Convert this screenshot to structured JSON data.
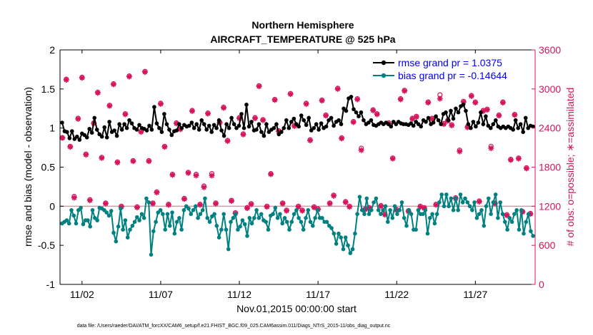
{
  "chart_data": {
    "type": "line",
    "title": [
      "Northern Hemisphere",
      "AIRCRAFT_TEMPERATURE @ 525 hPa"
    ],
    "xlabel": "Nov.01,2015 00:00:00 start",
    "ylabel_left": "rmse and bias (model - observation)",
    "ylabel_right": "# of obs: o=possible; ∗=assimilated",
    "footer": "data file: /Users/raeder/DAI/ATM_forcXX/CAM6_setup/f.e21.FHIST_BGC.f09_025.CAM6assim.011/Diags_NTrS_2015-11/obs_diag_output.nc",
    "xlim": [
      0.6,
      30.8
    ],
    "ylim_left": [
      -1,
      2
    ],
    "ylim_right": [
      0,
      3600
    ],
    "x_tick_values": [
      2,
      7,
      12,
      17,
      22,
      27
    ],
    "x_tick_labels": [
      "11/02",
      "11/07",
      "11/12",
      "11/17",
      "11/22",
      "11/27"
    ],
    "y_left_tick_labels": [
      "-1",
      "-0.5",
      "0",
      "0.5",
      "1",
      "1.5",
      "2"
    ],
    "y_right_tick_labels": [
      "0",
      "600",
      "1200",
      "1800",
      "2400",
      "3000",
      "3600"
    ],
    "legend": [
      "rmse grand pr = 1.0375",
      "bias grand pr = -0.14644"
    ],
    "colors": {
      "rmse": "#000000",
      "bias": "#008080",
      "obs": "#d6145c",
      "zero": "#c8a0a8"
    },
    "series": [
      {
        "name": "rmse",
        "axis": "left",
        "values": [
          1.07,
          0.96,
          0.95,
          0.87,
          0.96,
          0.86,
          0.89,
          0.85,
          0.93,
          0.91,
          0.88,
          0.99,
          0.94,
          1.13,
          0.98,
          0.92,
          0.89,
          1.01,
          0.88,
          1.08,
          0.95,
          0.97,
          0.9,
          1.05,
          0.98,
          1.05,
          1.0,
          1.1,
          1.06,
          1.0,
          0.98,
          1.04,
          1.0,
          0.99,
          0.97,
          1.03,
          0.98,
          1.27,
          1.06,
          1.0,
          0.95,
          1.18,
          1.05,
          0.98,
          0.91,
          0.96,
          0.97,
          1.05,
          1.0,
          1.04,
          1.02,
          1.03,
          1.07,
          1.0,
          1.05,
          0.98,
          1.1,
          1.05,
          0.98,
          1.03,
          0.95,
          1.04,
          1.0,
          1.1,
          0.97,
          0.9,
          1.05,
          1.0,
          1.13,
          1.05,
          1.0,
          1.03,
          1.18,
          1.0,
          1.3,
          1.02,
          1.08,
          0.97,
          0.98,
          1.05,
          0.95,
          0.9,
          1.05,
          0.95,
          0.98,
          1.0,
          1.05,
          0.92,
          0.95,
          1.0,
          1.1,
          1.0,
          1.08,
          1.12,
          1.05,
          1.02,
          1.16,
          1.1,
          1.04,
          1.13,
          0.97,
          1.0,
          1.05,
          0.98,
          1.06,
          1.0,
          1.02,
          1.1,
          1.13,
          1.03,
          1.08,
          1.1,
          1.05,
          1.25,
          1.22,
          1.38,
          1.4,
          1.24,
          1.2,
          1.15,
          1.2,
          1.1,
          1.05,
          1.07,
          1.1,
          1.04,
          1.03,
          1.05,
          1.07,
          1.05,
          1.07,
          1.05,
          1.02,
          1.08,
          1.05,
          1.08,
          1.06,
          1.05,
          1.05,
          1.04,
          1.06,
          1.03,
          1.08,
          1.05,
          1.02,
          1.1,
          1.08,
          1.13,
          1.05,
          1.07,
          1.15,
          1.1,
          1.05,
          1.18,
          1.2,
          1.1,
          1.22,
          1.12,
          1.25,
          1.2,
          1.28,
          1.3,
          1.22,
          1.05,
          1.0,
          1.08,
          1.02,
          1.07,
          1.2,
          1.05,
          1.15,
          1.03,
          1.0,
          1.05,
          1.1,
          1.02,
          1.0,
          1.02,
          1.0,
          1.02,
          1.0,
          0.98,
          1.1,
          1.0,
          1.05,
          0.95,
          1.13,
          1.0,
          1.03,
          1.02
        ]
      },
      {
        "name": "bias",
        "axis": "left",
        "values": [
          -0.22,
          -0.2,
          -0.18,
          -0.22,
          -0.05,
          -0.12,
          -0.22,
          -0.05,
          -0.02,
          -0.23,
          -0.18,
          -0.18,
          -0.26,
          -0.05,
          -0.15,
          -0.18,
          -0.02,
          -0.03,
          -0.05,
          -0.08,
          -0.12,
          -0.06,
          -0.34,
          -0.45,
          -0.26,
          -0.03,
          -0.3,
          -0.18,
          -0.4,
          -0.3,
          -0.25,
          -0.2,
          -0.14,
          -0.18,
          -0.1,
          -0.15,
          0.1,
          0.05,
          -0.62,
          -0.32,
          -0.2,
          -0.08,
          -0.05,
          -0.1,
          -0.3,
          -0.1,
          -0.25,
          -0.08,
          -0.35,
          -0.2,
          -0.15,
          -0.3,
          -0.05,
          0.0,
          -0.03,
          -0.1,
          -0.05,
          0.0,
          -0.15,
          -0.1,
          -0.05,
          0.1,
          -0.15,
          -0.2,
          -0.13,
          -0.1,
          -0.25,
          -0.4,
          -0.3,
          -0.1,
          -0.3,
          -0.55,
          -0.2,
          -0.15,
          -0.1,
          -0.3,
          -0.26,
          -0.18,
          -0.23,
          -0.38,
          -0.15,
          -0.22,
          -0.15,
          -0.05,
          -0.15,
          -0.1,
          -0.18,
          -0.2,
          -0.3,
          -0.12,
          -0.1,
          -0.02,
          -0.15,
          -0.1,
          -0.22,
          -0.15,
          -0.2,
          -0.3,
          -0.2,
          -0.1,
          -0.05,
          -0.15,
          -0.2,
          -0.3,
          -0.15,
          -0.05,
          -0.2,
          -0.25,
          -0.15,
          -0.05,
          -0.15,
          -0.15,
          -0.2,
          -0.2,
          -0.25,
          -0.28,
          -0.35,
          -0.48,
          -0.35,
          -0.4,
          -0.55,
          -0.4,
          -0.5,
          -0.6,
          -0.55,
          -0.35,
          -0.1,
          0.12,
          -0.05,
          -0.1,
          0.1,
          -0.1,
          -0.05,
          0.05,
          0.1,
          -0.05,
          -0.1,
          -0.05,
          0.0,
          -0.2,
          -0.05,
          -0.15,
          0.0,
          -0.1,
          -0.05,
          0.05,
          -0.15,
          -0.25,
          -0.05,
          -0.1,
          -0.3,
          -0.3,
          -0.05,
          -0.1,
          -0.1,
          -0.05,
          -0.35,
          -0.15,
          -0.1,
          -0.22,
          -0.1,
          0.05,
          0.15,
          0.0,
          0.15,
          0.0,
          0.1,
          -0.05,
          0.1,
          -0.05,
          0.15,
          0.05,
          0.1,
          0.05,
          0.0,
          -0.05,
          0.05,
          -0.15,
          -0.1,
          -0.05,
          -0.25,
          0.0,
          0.1,
          -0.1,
          0.05,
          0.15,
          -0.15,
          0.05,
          -0.1,
          -0.2,
          -0.3,
          -0.15,
          -0.2,
          -0.1,
          -0.05,
          -0.3,
          -0.05,
          -0.35,
          -0.2,
          -0.1,
          -0.32,
          -0.38
        ]
      },
      {
        "name": "obs_possible",
        "axis": "right",
        "x": [
          0.75,
          1.0,
          1.25,
          1.5,
          1.75,
          2.0,
          2.25,
          2.5,
          2.75,
          3.0,
          3.25,
          3.5,
          3.75,
          4.0,
          4.25,
          4.5,
          4.75,
          5.0,
          5.25,
          5.5,
          5.75,
          6.0,
          6.25,
          6.5,
          6.75,
          7.0,
          7.25,
          7.5,
          7.75,
          8.0,
          8.25,
          8.5,
          8.75,
          9.0,
          9.25,
          9.5,
          9.75,
          10.0,
          10.25,
          10.5,
          10.75,
          11.0,
          11.25,
          11.5,
          11.75,
          12.0,
          12.25,
          12.5,
          12.75,
          13.0,
          13.25,
          13.5,
          13.75,
          14.0,
          14.25,
          14.5,
          14.75,
          15.0,
          15.25,
          15.5,
          15.75,
          16.0,
          16.25,
          16.5,
          16.75,
          17.0,
          17.25,
          17.5,
          17.75,
          18.0,
          18.25,
          18.5,
          18.75,
          19.0,
          19.25,
          19.5,
          19.75,
          20.0,
          20.25,
          20.5,
          20.75,
          21.0,
          21.25,
          21.5,
          21.75,
          22.0,
          22.25,
          22.5,
          22.75,
          23.0,
          23.25,
          23.5,
          23.75,
          24.0,
          24.25,
          24.5,
          24.75,
          25.0,
          25.25,
          25.5,
          25.75,
          26.0,
          26.25,
          26.5,
          26.75,
          27.0,
          27.25,
          27.5,
          27.75,
          28.0,
          28.25,
          28.5,
          28.75,
          29.0,
          29.25,
          29.5,
          29.75,
          30.0,
          30.25,
          30.5
        ],
        "values": [
          2250,
          3150,
          2120,
          1350,
          2550,
          3180,
          2000,
          1300,
          2480,
          2950,
          1950,
          1250,
          2750,
          3080,
          1880,
          1200,
          2620,
          3200,
          1900,
          1190,
          2350,
          3270,
          1900,
          1250,
          1420,
          2780,
          2120,
          1230,
          1690,
          2480,
          2390,
          1320,
          1720,
          2670,
          1690,
          1230,
          1510,
          2630,
          1700,
          1250,
          2490,
          2720,
          2210,
          1290,
          1100,
          2560,
          2310,
          1180,
          1240,
          2560,
          3050,
          2530,
          1200,
          1700,
          2840,
          2360,
          1250,
          1140,
          2930,
          2440,
          1200,
          1140,
          2780,
          2220,
          1190,
          1160,
          2830,
          2600,
          1250,
          1370,
          3010,
          2250,
          1270,
          1200,
          2500,
          2850,
          2090,
          1160,
          1180,
          2680,
          2620,
          1210,
          1080,
          2480,
          1940,
          1150,
          2850,
          2980,
          1130,
          2550,
          2580,
          1200,
          1180,
          2800,
          2550,
          1230,
          2910,
          2470,
          2520,
          2450,
          1330,
          2060,
          2810,
          2420,
          2900,
          2800,
          1280,
          2670,
          2690,
          2120,
          1250,
          2600,
          2800,
          1070,
          1920,
          2610,
          1940,
          1120,
          1790,
          1090
        ]
      },
      {
        "name": "obs_assimilated",
        "axis": "right",
        "x": [
          0.75,
          1.0,
          1.25,
          1.5,
          1.75,
          2.0,
          2.25,
          2.5,
          2.75,
          3.0,
          3.25,
          3.5,
          3.75,
          4.0,
          4.25,
          4.5,
          4.75,
          5.0,
          5.25,
          5.5,
          5.75,
          6.0,
          6.25,
          6.5,
          6.75,
          7.0,
          7.25,
          7.5,
          7.75,
          8.0,
          8.25,
          8.5,
          8.75,
          9.0,
          9.25,
          9.5,
          9.75,
          10.0,
          10.25,
          10.5,
          10.75,
          11.0,
          11.25,
          11.5,
          11.75,
          12.0,
          12.25,
          12.5,
          12.75,
          13.0,
          13.25,
          13.5,
          13.75,
          14.0,
          14.25,
          14.5,
          14.75,
          15.0,
          15.25,
          15.5,
          15.75,
          16.0,
          16.25,
          16.5,
          16.75,
          17.0,
          17.25,
          17.5,
          17.75,
          18.0,
          18.25,
          18.5,
          18.75,
          19.0,
          19.25,
          19.5,
          19.75,
          20.0,
          20.25,
          20.5,
          20.75,
          21.0,
          21.25,
          21.5,
          21.75,
          22.0,
          22.25,
          22.5,
          22.75,
          23.0,
          23.25,
          23.5,
          23.75,
          24.0,
          24.25,
          24.5,
          24.75,
          25.0,
          25.25,
          25.5,
          25.75,
          26.0,
          26.25,
          26.5,
          26.75,
          27.0,
          27.25,
          27.5,
          27.75,
          28.0,
          28.25,
          28.5,
          28.75,
          29.0,
          29.25,
          29.5,
          29.75,
          30.0,
          30.25,
          30.5
        ],
        "values": [
          2250,
          3140,
          2110,
          1330,
          2540,
          3170,
          1990,
          1290,
          2470,
          2940,
          1940,
          1240,
          2740,
          3070,
          1870,
          1190,
          2610,
          3190,
          1890,
          1180,
          2340,
          3260,
          1890,
          1240,
          1410,
          2770,
          2110,
          1220,
          1680,
          2470,
          2380,
          1310,
          1710,
          2660,
          1670,
          1220,
          1490,
          2620,
          1670,
          1240,
          2480,
          2710,
          2200,
          1280,
          1090,
          2550,
          2300,
          1170,
          1230,
          2550,
          3040,
          2520,
          1190,
          1690,
          2830,
          2350,
          1240,
          1130,
          2920,
          2430,
          1190,
          1130,
          2770,
          2210,
          1180,
          1150,
          2820,
          2590,
          1240,
          1360,
          3000,
          2240,
          1260,
          1190,
          2490,
          2840,
          2060,
          1150,
          1170,
          2670,
          2610,
          1200,
          1070,
          2470,
          1930,
          1140,
          2840,
          2970,
          1120,
          2540,
          2570,
          1190,
          1170,
          2790,
          2540,
          1220,
          2850,
          2460,
          2510,
          2440,
          1320,
          2040,
          2800,
          2410,
          2890,
          2790,
          1270,
          2660,
          2680,
          2090,
          1240,
          2590,
          2790,
          1060,
          1910,
          2600,
          1930,
          1110,
          1780,
          1080
        ]
      }
    ]
  }
}
